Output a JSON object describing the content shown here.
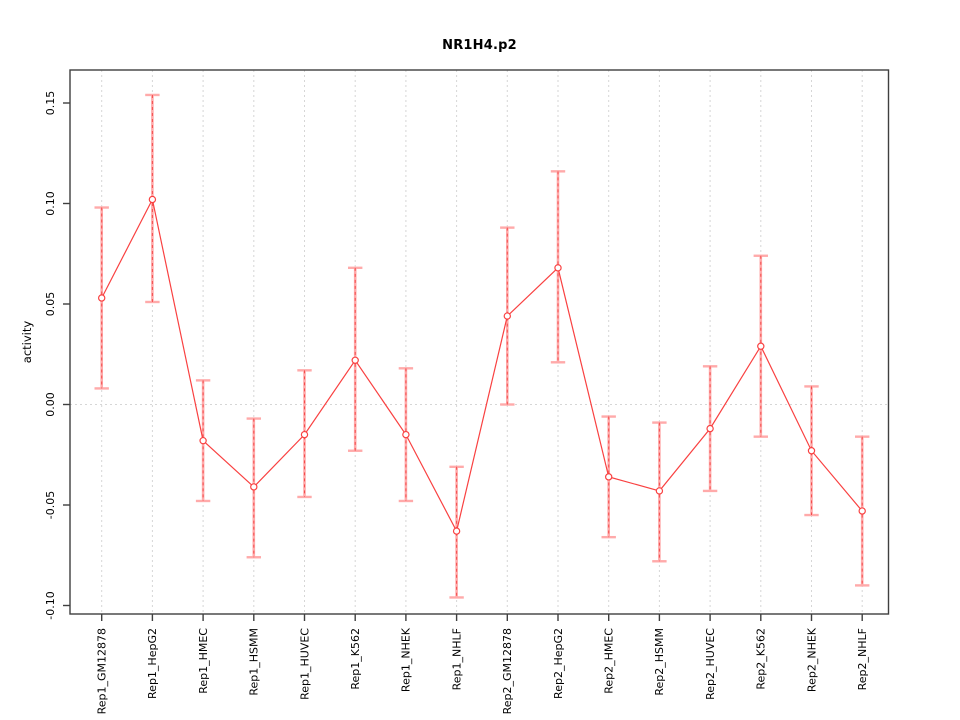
{
  "chart_data": {
    "type": "line",
    "title": "NR1H4.p2",
    "xlabel": "",
    "ylabel": "activity",
    "ylim": [
      -0.104,
      0.166
    ],
    "yticks": [
      -0.1,
      -0.05,
      0.0,
      0.05,
      0.1,
      0.15
    ],
    "grid": {
      "vertical_per_category": true,
      "horizontal_at_zero": true
    },
    "legend": "none",
    "categories": [
      "Rep1_GM12878",
      "Rep1_HepG2",
      "Rep1_HMEC",
      "Rep1_HSMM",
      "Rep1_HUVEC",
      "Rep1_K562",
      "Rep1_NHEK",
      "Rep1_NHLF",
      "Rep2_GM12878",
      "Rep2_HepG2",
      "Rep2_HMEC",
      "Rep2_HSMM",
      "Rep2_HUVEC",
      "Rep2_K562",
      "Rep2_NHEK",
      "Rep2_NHLF"
    ],
    "series": [
      {
        "name": "activity",
        "values": [
          0.053,
          0.102,
          -0.018,
          -0.041,
          -0.015,
          0.022,
          -0.015,
          -0.063,
          0.044,
          0.068,
          -0.036,
          -0.043,
          -0.012,
          0.029,
          -0.023,
          -0.053
        ],
        "ci_high": [
          0.098,
          0.154,
          0.012,
          -0.007,
          0.017,
          0.068,
          0.018,
          -0.031,
          0.088,
          0.116,
          -0.006,
          -0.009,
          0.019,
          0.074,
          0.009,
          -0.016
        ],
        "ci_low": [
          0.008,
          0.051,
          -0.048,
          -0.076,
          -0.046,
          -0.023,
          -0.048,
          -0.096,
          0.0,
          0.021,
          -0.066,
          -0.078,
          -0.043,
          -0.016,
          -0.055,
          -0.09
        ]
      }
    ],
    "colors": {
      "line": "#f94141",
      "marker": "#f94141",
      "error_bar": "#ffaaaa",
      "error_bar_dash": "#f34d4d",
      "grid": "#d6d6d6",
      "box": "#3f3f3f",
      "tick": "#3f3f3f",
      "text": "#000000",
      "background": "#ffffff"
    }
  }
}
